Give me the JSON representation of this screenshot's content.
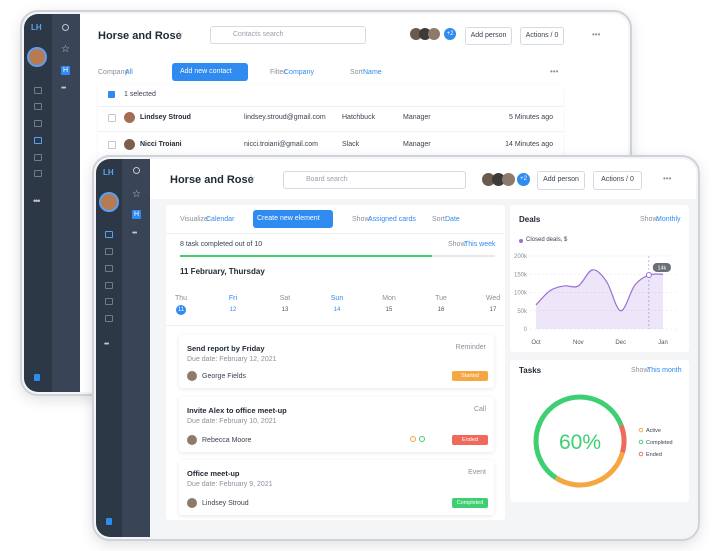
{
  "back_window": {
    "logo": "LH",
    "workspace_badge": "H",
    "title": "Horse and Rose",
    "search": "Contacts search",
    "avatar_more": "+2",
    "add_person": "Add person",
    "actions": "Actions / 0",
    "filters": {
      "company_label": "Company:",
      "company": "All",
      "add_contact": "Add new contact",
      "filter_label": "Filter:",
      "filter": "Company",
      "sort_label": "Sort:",
      "sort": "Name"
    },
    "selected": "1 selected",
    "rows": [
      [
        "Lindsey Stroud",
        "lindsey.stroud@gmail.com",
        "Hatchbuck",
        "Manager",
        "5 Minutes ago"
      ],
      [
        "Nicci Troiani",
        "nicci.troiani@gmail.com",
        "Slack",
        "Manager",
        "14 Minutes ago"
      ]
    ]
  },
  "front_window": {
    "logo": "LH",
    "workspace_badge": "H",
    "title": "Horse and Rose",
    "search": "Board search",
    "avatar_more": "+2",
    "add_person": "Add person",
    "actions": "Actions / 0",
    "toolbar": {
      "visualize_label": "Visualize:",
      "visualize": "Calendar",
      "create": "Create new element",
      "show_label": "Show:",
      "show": "Assigned cards",
      "sort_label": "Sort:",
      "sort": "Date"
    },
    "progress": {
      "label": "8 task completed out of 10",
      "show_label": "Show:",
      "show": "This week",
      "completed": 8,
      "total": 10
    },
    "date_heading": "11 February, Thursday",
    "week": {
      "days": [
        "Thu",
        "Fri",
        "Sat",
        "Sun",
        "Mon",
        "Tue",
        "Wed"
      ],
      "dates": [
        11,
        12,
        13,
        14,
        15,
        16,
        17
      ]
    },
    "cards": [
      {
        "title": "Send report by Friday",
        "type": "Reminder",
        "due": "Due date: February 12, 2021",
        "person": "George Fields",
        "status": "Started",
        "status_color": "#f5a742"
      },
      {
        "title": "Invite Alex to office meet-up",
        "type": "Call",
        "due": "Due date: February 10, 2021",
        "person": "Rebecca Moore",
        "status": "Ended",
        "status_color": "#ef6a5a"
      },
      {
        "title": "Office meet-up",
        "type": "Event",
        "due": "Due date: February 9, 2021",
        "person": "Lindsey Stroud",
        "status": "Completed",
        "status_color": "#3ecf72"
      }
    ]
  },
  "chart_data": [
    {
      "type": "area",
      "title": "Deals",
      "show_label": "Show:",
      "show": "Monthly",
      "categories": [
        "Oct",
        null,
        null,
        "Nov",
        null,
        null,
        "Dec",
        null,
        null,
        "Jan"
      ],
      "series": [
        {
          "name": "Closed deals, $",
          "color": "#9b6fd6",
          "values": [
            66000,
            105000,
            118000,
            118000,
            162000,
            130000,
            50000,
            120000,
            148000,
            150000
          ]
        }
      ],
      "ylim": [
        0,
        200000
      ],
      "yticks": [
        0,
        {
          "value": 50000,
          "label": "50k"
        },
        {
          "value": 100000,
          "label": "100k"
        },
        {
          "value": 150000,
          "label": "150k"
        },
        {
          "value": 200000,
          "label": "200k"
        }
      ],
      "grid": true,
      "annotation": "14k"
    },
    {
      "type": "donut",
      "title": "Tasks",
      "show_label": "Show:",
      "show": "This month",
      "categories": [
        "Active",
        "Completed",
        "Ended"
      ],
      "values": [
        30,
        60,
        10
      ],
      "colors": [
        "#f5a742",
        "#3ecf72",
        "#ef6a5a"
      ],
      "center_label": "60%"
    }
  ]
}
